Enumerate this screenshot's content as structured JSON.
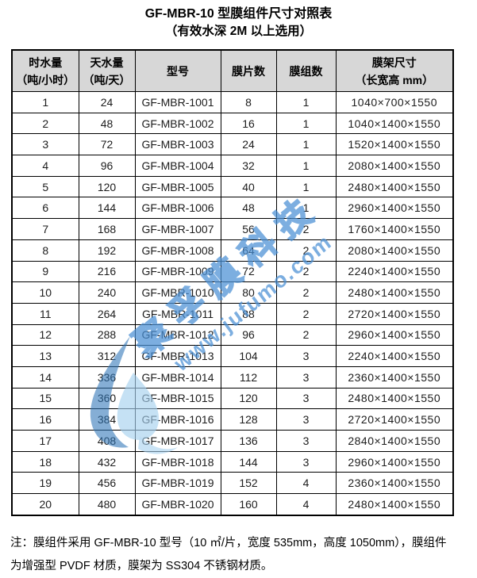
{
  "page": {
    "title": "GF-MBR-10 型膜组件尺寸对照表",
    "subtitle": "（有效水深 2M 以上选用）"
  },
  "table": {
    "headers": [
      [
        "时水量",
        "（吨/小时）"
      ],
      [
        "天水量",
        "（吨/天）"
      ],
      [
        "型号"
      ],
      [
        "膜片数"
      ],
      [
        "膜组数"
      ],
      [
        "膜架尺寸",
        "（长宽高 mm）"
      ]
    ],
    "rows": [
      [
        "1",
        "24",
        "GF-MBR-1001",
        "8",
        "1",
        "1040×700×1550"
      ],
      [
        "2",
        "48",
        "GF-MBR-1002",
        "16",
        "1",
        "1040×1400×1550"
      ],
      [
        "3",
        "72",
        "GF-MBR-1003",
        "24",
        "1",
        "1520×1400×1550"
      ],
      [
        "4",
        "96",
        "GF-MBR-1004",
        "32",
        "1",
        "2080×1400×1550"
      ],
      [
        "5",
        "120",
        "GF-MBR-1005",
        "40",
        "1",
        "2480×1400×1550"
      ],
      [
        "6",
        "144",
        "GF-MBR-1006",
        "48",
        "1",
        "2960×1400×1550"
      ],
      [
        "7",
        "168",
        "GF-MBR-1007",
        "56",
        "2",
        "1760×1400×1550"
      ],
      [
        "8",
        "192",
        "GF-MBR-1008",
        "64",
        "2",
        "2080×1400×1550"
      ],
      [
        "9",
        "216",
        "GF-MBR-1009",
        "72",
        "2",
        "2240×1400×1550"
      ],
      [
        "10",
        "240",
        "GF-MBR-1010",
        "80",
        "2",
        "2480×1400×1550"
      ],
      [
        "11",
        "264",
        "GF-MBR-1011",
        "88",
        "2",
        "2720×1400×1550"
      ],
      [
        "12",
        "288",
        "GF-MBR-1012",
        "96",
        "2",
        "2960×1400×1550"
      ],
      [
        "13",
        "312",
        "GF-MBR-1013",
        "104",
        "3",
        "2240×1400×1550"
      ],
      [
        "14",
        "336",
        "GF-MBR-1014",
        "112",
        "3",
        "2360×1400×1550"
      ],
      [
        "15",
        "360",
        "GF-MBR-1015",
        "120",
        "3",
        "2480×1400×1550"
      ],
      [
        "16",
        "384",
        "GF-MBR-1016",
        "128",
        "3",
        "2720×1400×1550"
      ],
      [
        "17",
        "408",
        "GF-MBR-1017",
        "136",
        "3",
        "2840×1400×1550"
      ],
      [
        "18",
        "432",
        "GF-MBR-1018",
        "144",
        "3",
        "2960×1400×1550"
      ],
      [
        "19",
        "456",
        "GF-MBR-1019",
        "152",
        "4",
        "2360×1400×1550"
      ],
      [
        "20",
        "480",
        "GF-MBR-1020",
        "160",
        "4",
        "2480×1400×1550"
      ]
    ]
  },
  "note": {
    "line1": "注：膜组件采用 GF-MBR-10 型号（10 ㎡/片，宽度 535mm，高度 1050mm），膜组件",
    "line2": "为增强型 PVDF 材质，膜架为 SS304 不锈钢材质。"
  },
  "watermark": {
    "brand": "聚孚膜科技",
    "url": "www.jufumo.com",
    "color": "#4a90d5"
  },
  "colors": {
    "header_bg": "#d7d7d7",
    "border": "#000000",
    "watermark_blue": "#4a90d5",
    "logo_dark_blue": "#2e75b6",
    "logo_light_blue": "#a5d0ee"
  }
}
